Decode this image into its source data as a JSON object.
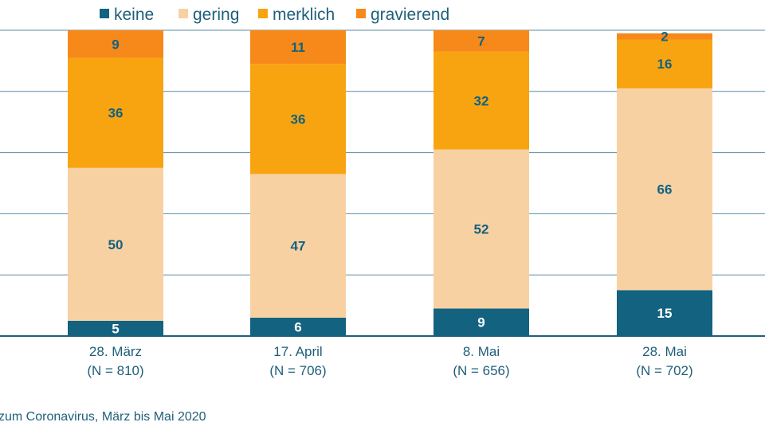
{
  "chart_data": {
    "type": "bar",
    "stacked": true,
    "categories": [
      "28. März",
      "17. April",
      "8. Mai",
      "28. Mai"
    ],
    "category_notes": [
      "(N = 810)",
      "(N = 706)",
      "(N = 656)",
      "(N = 702)"
    ],
    "series": [
      {
        "name": "keine",
        "color": "#13627f",
        "label_color": "#ffffff",
        "values": [
          5,
          6,
          9,
          15
        ]
      },
      {
        "name": "gering",
        "color": "#f8d1a3",
        "label_color": "#13627f",
        "values": [
          50,
          47,
          52,
          66
        ]
      },
      {
        "name": "merklich",
        "color": "#f8a411",
        "label_color": "#13627f",
        "values": [
          36,
          36,
          32,
          16
        ]
      },
      {
        "name": "gravierend",
        "color": "#f7891a",
        "label_color": "#13627f",
        "values": [
          9,
          11,
          7,
          2
        ]
      }
    ],
    "ylim": [
      0,
      100
    ],
    "grid": true,
    "legend_position": "top-left"
  },
  "footer": {
    "text": "zum Coronavirus, März bis Mai 2020"
  },
  "colors": {
    "axis": "#1f5f7a",
    "grid": "#5a8ca3"
  }
}
